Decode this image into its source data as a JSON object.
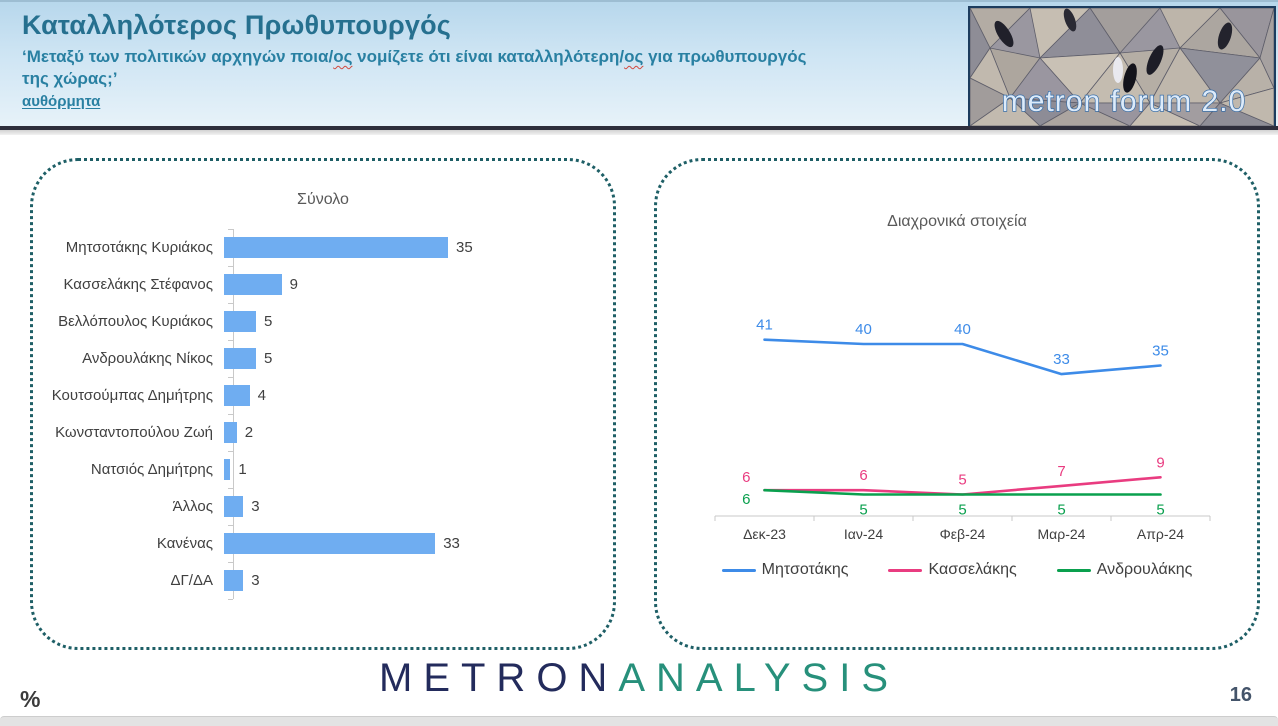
{
  "header": {
    "title": "Καταλληλότερος Πρωθυπουργός",
    "subtitle_part1": "‘Μεταξύ των πολιτικών αρχηγών ποια/",
    "subtitle_mis1": "ος",
    "subtitle_part2": " νομίζετε ότι είναι καταλληλότερη/",
    "subtitle_mis2": "ος",
    "subtitle_part3": " για πρωθυπουργός",
    "subtitle_line2": "της χώρας;’",
    "method_note": "αυθόρμητα",
    "logo_text": "metron forum 2.0"
  },
  "footer": {
    "percent_sign": "%",
    "logo_metron": "METRON",
    "logo_analysis": "ANALYSIS",
    "page_number": "16"
  },
  "colors": {
    "title_text": "#26708f",
    "card_border": "#1e5f66",
    "bar_fill": "#6fadf1",
    "axis_gray": "#c9c9c9",
    "label_gray": "#404040"
  },
  "chart_data": [
    {
      "type": "bar",
      "orientation": "horizontal",
      "title": "Σύνολο",
      "categories": [
        "Μητσοτάκης Κυριάκος",
        "Κασσελάκης Στέφανος",
        "Βελλόπουλος Κυριάκος",
        "Ανδρουλάκης Νίκος",
        "Κουτσούμπας Δημήτρης",
        "Κωνσταντοπούλου Ζωή",
        "Νατσιός Δημήτρης",
        "Άλλος",
        "Κανένας",
        "ΔΓ/ΔΑ"
      ],
      "values": [
        35,
        9,
        5,
        5,
        4,
        2,
        1,
        3,
        33,
        3
      ],
      "xlim": [
        0,
        40
      ],
      "bar_color": "#6fadf1",
      "value_labels": true,
      "grid": false
    },
    {
      "type": "line",
      "title": "Διαχρονικά στοιχεία",
      "x": [
        "Δεκ-23",
        "Ιαν-24",
        "Φεβ-24",
        "Μαρ-24",
        "Απρ-24"
      ],
      "series": [
        {
          "name": "Μητσοτάκης",
          "values": [
            41,
            40,
            40,
            33,
            35
          ],
          "color": "#3d8be8",
          "label_position": "above"
        },
        {
          "name": "Κασσελάκης",
          "values": [
            6,
            6,
            5,
            7,
            9
          ],
          "color": "#e93c80",
          "label_position": "above",
          "first_label": "left"
        },
        {
          "name": "Ανδρουλάκης",
          "values": [
            6,
            5,
            5,
            5,
            5
          ],
          "color": "#0aa04e",
          "label_position": "below",
          "first_label": "left"
        }
      ],
      "ylim": [
        0,
        45
      ],
      "legend_position": "bottom",
      "grid": false
    }
  ]
}
